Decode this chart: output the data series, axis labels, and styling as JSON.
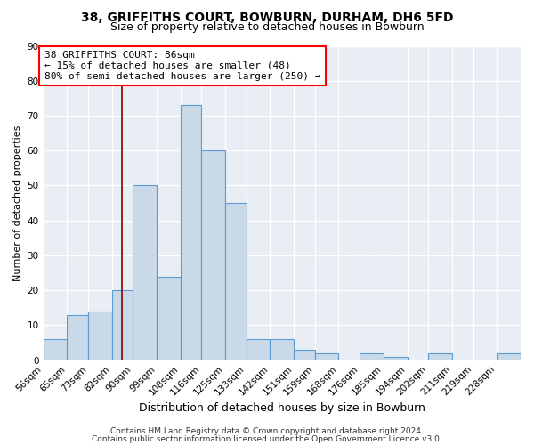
{
  "title1": "38, GRIFFITHS COURT, BOWBURN, DURHAM, DH6 5FD",
  "title2": "Size of property relative to detached houses in Bowburn",
  "xlabel": "Distribution of detached houses by size in Bowburn",
  "ylabel": "Number of detached properties",
  "bin_labels": [
    "56sqm",
    "65sqm",
    "73sqm",
    "82sqm",
    "90sqm",
    "99sqm",
    "108sqm",
    "116sqm",
    "125sqm",
    "133sqm",
    "142sqm",
    "151sqm",
    "159sqm",
    "168sqm",
    "176sqm",
    "185sqm",
    "194sqm",
    "202sqm",
    "211sqm",
    "219sqm",
    "228sqm"
  ],
  "bin_edges": [
    56,
    65,
    73,
    82,
    90,
    99,
    108,
    116,
    125,
    133,
    142,
    151,
    159,
    168,
    176,
    185,
    194,
    202,
    211,
    219,
    228
  ],
  "bar_heights": [
    6,
    13,
    14,
    20,
    50,
    24,
    73,
    60,
    45,
    6,
    6,
    3,
    2,
    0,
    2,
    1,
    0,
    2,
    0,
    0,
    2
  ],
  "bar_color": "#c9d9e8",
  "bar_edge_color": "#5b9bd5",
  "red_line_x": 86,
  "annotation_line1": "38 GRIFFITHS COURT: 86sqm",
  "annotation_line2": "← 15% of detached houses are smaller (48)",
  "annotation_line3": "80% of semi-detached houses are larger (250) →",
  "footer1": "Contains HM Land Registry data © Crown copyright and database right 2024.",
  "footer2": "Contains public sector information licensed under the Open Government Licence v3.0.",
  "ylim": [
    0,
    90
  ],
  "background_color": "#ffffff",
  "plot_bg_color": "#e8eef4",
  "grid_color": "#ffffff",
  "title1_fontsize": 10,
  "title2_fontsize": 9,
  "xlabel_fontsize": 9,
  "ylabel_fontsize": 8,
  "tick_fontsize": 7.5,
  "annotation_fontsize": 8,
  "footer_fontsize": 6.5
}
